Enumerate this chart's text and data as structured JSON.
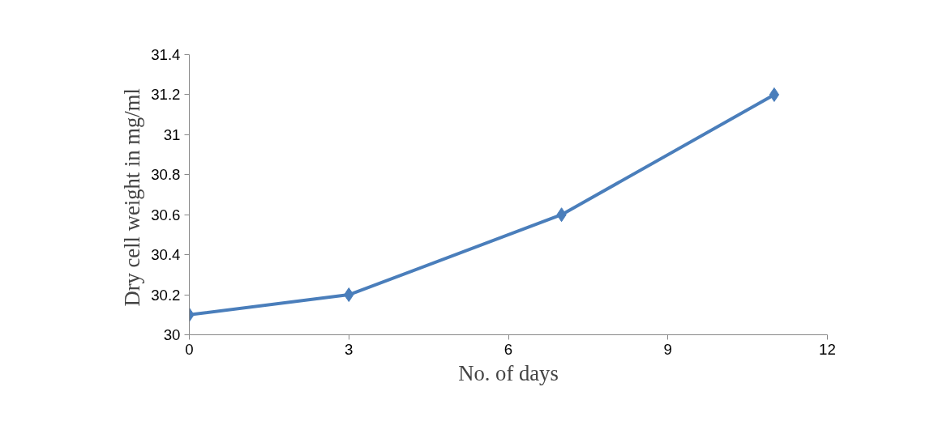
{
  "chart_data": {
    "type": "line",
    "xlabel": "No. of days",
    "ylabel": "Dry cell weight  in mg/ml",
    "x": [
      0,
      3,
      7,
      11
    ],
    "series": [
      {
        "color": "#4a7ebb",
        "values": [
          30.1,
          30.2,
          30.6,
          31.2
        ]
      }
    ],
    "xlim": [
      0,
      12
    ],
    "xticks": [
      0,
      3,
      6,
      9,
      12
    ],
    "ylim": [
      30,
      31.4
    ],
    "yticks": [
      30,
      {
        "value": 30.2,
        "label": "30.2"
      },
      {
        "value": 30.4,
        "label": "30.4"
      },
      {
        "value": 30.6,
        "label": "30.6"
      },
      {
        "value": 30.8,
        "label": "30.8"
      },
      31,
      {
        "value": 31.2,
        "label": "31.2"
      },
      {
        "value": 31.4,
        "label": "31.4"
      }
    ],
    "grid": false,
    "marker": "diamond",
    "line_style": "solid"
  }
}
